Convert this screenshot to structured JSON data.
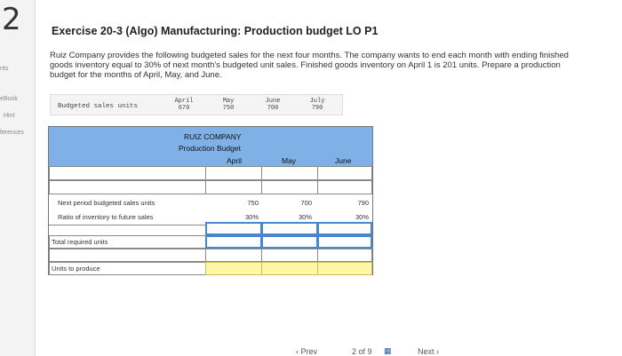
{
  "sidebar": {
    "question_number": "2",
    "points_label": "nts",
    "ebook": "eBook",
    "hint": "Hint",
    "references": "ferences"
  },
  "title": "Exercise 20-3 (Algo) Manufacturing: Production budget LO P1",
  "intro": "Ruiz Company provides the following budgeted sales for the next four months. The company wants to end each month with ending finished goods inventory equal to 30% of next month's budgeted unit sales. Finished goods inventory on April 1 is 201 units. Prepare a production budget for the months of April, May, and June.",
  "sales": {
    "label": "Budgeted sales units",
    "months": [
      "April",
      "May",
      "June",
      "July"
    ],
    "values": [
      "670",
      "750",
      "700",
      "790"
    ]
  },
  "budget": {
    "company": "RUIZ COMPANY",
    "subtitle": "Production Budget",
    "months": [
      "April",
      "May",
      "June"
    ],
    "rows": {
      "next_period": "Next period budgeted sales units",
      "ratio": "Ratio of inventory to future sales",
      "total": "Total required units",
      "produce": "Units to produce"
    },
    "next_period_values": [
      "750",
      "700",
      "790"
    ],
    "ratio_values": [
      "30%",
      "30%",
      "30%"
    ]
  },
  "footer": {
    "prev": "Prev",
    "page": "2 of 9",
    "next": "Next"
  },
  "colors": {
    "header_band": "#7fb0e6",
    "input_border": "#4a86d0",
    "answer_fill": "#fff6a8"
  }
}
